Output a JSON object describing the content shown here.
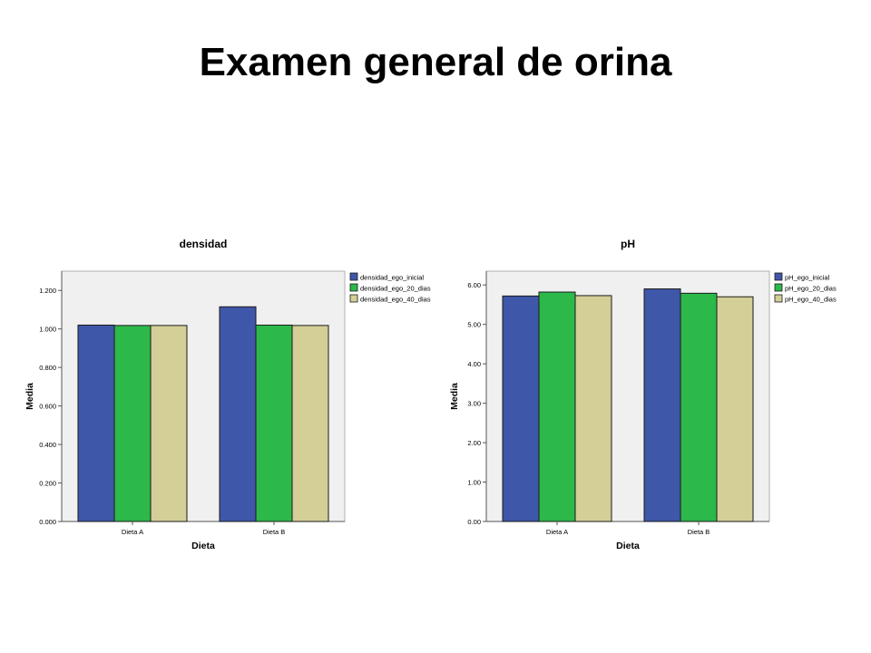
{
  "slide": {
    "title": "Examen general de orina"
  },
  "colors": {
    "plot_bg": "#f0f0f0",
    "bar_stroke": "#1a1a1a"
  },
  "chart_data": [
    {
      "type": "bar",
      "title": "densidad",
      "xlabel": "Dieta",
      "ylabel": "Media",
      "categories": [
        "Dieta A",
        "Dieta B"
      ],
      "ylim": [
        0,
        1.3
      ],
      "yticks": [
        0,
        0.2,
        0.4,
        0.6,
        0.8,
        1.0,
        1.2
      ],
      "ytick_labels": [
        "0.000",
        "0.200",
        "0.400",
        "0.600",
        "0.800",
        "1.000",
        "1.200"
      ],
      "grid": false,
      "legend_position": "right",
      "series": [
        {
          "name": "densidad_ego_inicial",
          "color": "#3f57a8",
          "values": [
            1.02,
            1.115
          ]
        },
        {
          "name": "densidad_ego_20_dias",
          "color": "#2db84a",
          "values": [
            1.018,
            1.02
          ]
        },
        {
          "name": "densidad_ego_40_dias",
          "color": "#d3cf97",
          "values": [
            1.018,
            1.018
          ]
        }
      ]
    },
    {
      "type": "bar",
      "title": "pH",
      "xlabel": "Dieta",
      "ylabel": "Media",
      "categories": [
        "Dieta A",
        "Dieta B"
      ],
      "ylim": [
        0,
        6.35
      ],
      "yticks": [
        0,
        1,
        2,
        3,
        4,
        5,
        6
      ],
      "ytick_labels": [
        "0.00",
        "1.00",
        "2.00",
        "3.00",
        "4.00",
        "5.00",
        "6.00"
      ],
      "grid": false,
      "legend_position": "right",
      "series": [
        {
          "name": "pH_ego_inicial",
          "color": "#3f57a8",
          "values": [
            5.72,
            5.9
          ]
        },
        {
          "name": "pH_ego_20_dias",
          "color": "#2db84a",
          "values": [
            5.82,
            5.79
          ]
        },
        {
          "name": "pH_ego_40_dias",
          "color": "#d3cf97",
          "values": [
            5.73,
            5.7
          ]
        }
      ]
    }
  ]
}
